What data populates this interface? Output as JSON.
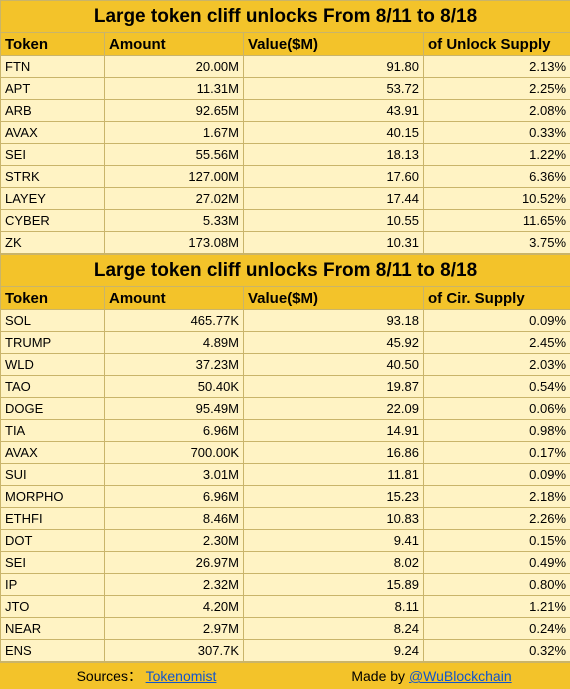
{
  "table1": {
    "title": "Large token cliff unlocks From  8/11 to 8/18",
    "headers": [
      "Token",
      "Amount",
      "Value($M)",
      "of Unlock Supply"
    ],
    "rows": [
      [
        "FTN",
        "20.00M",
        "91.80",
        "2.13%"
      ],
      [
        "APT",
        "11.31M",
        "53.72",
        "2.25%"
      ],
      [
        "ARB",
        "92.65M",
        "43.91",
        "2.08%"
      ],
      [
        "AVAX",
        "1.67M",
        "40.15",
        "0.33%"
      ],
      [
        "SEI",
        "55.56M",
        "18.13",
        "1.22%"
      ],
      [
        "STRK",
        "127.00M",
        "17.60",
        "6.36%"
      ],
      [
        "LAYEY",
        "27.02M",
        "17.44",
        "10.52%"
      ],
      [
        "CYBER",
        "5.33M",
        "10.55",
        "11.65%"
      ],
      [
        "ZK",
        "173.08M",
        "10.31",
        "3.75%"
      ]
    ]
  },
  "table2": {
    "title": "Large token cliff unlocks From  8/11 to 8/18",
    "headers": [
      "Token",
      "Amount",
      "Value($M)",
      "of Cir. Supply"
    ],
    "rows": [
      [
        "SOL",
        "465.77K",
        "93.18",
        "0.09%"
      ],
      [
        "TRUMP",
        "4.89M",
        "45.92",
        "2.45%"
      ],
      [
        "WLD",
        "37.23M",
        "40.50",
        "2.03%"
      ],
      [
        "TAO",
        "50.40K",
        "19.87",
        "0.54%"
      ],
      [
        "DOGE",
        "95.49M",
        "22.09",
        "0.06%"
      ],
      [
        "TIA",
        "6.96M",
        "14.91",
        "0.98%"
      ],
      [
        "AVAX",
        "700.00K",
        "16.86",
        "0.17%"
      ],
      [
        "SUI",
        "3.01M",
        "11.81",
        "0.09%"
      ],
      [
        "MORPHO",
        "6.96M",
        "15.23",
        "2.18%"
      ],
      [
        "ETHFI",
        "8.46M",
        "10.83",
        "2.26%"
      ],
      [
        "DOT",
        "2.30M",
        "9.41",
        "0.15%"
      ],
      [
        "SEI",
        "26.97M",
        "8.02",
        "0.49%"
      ],
      [
        "IP",
        "2.32M",
        "15.89",
        "0.80%"
      ],
      [
        "JTO",
        "4.20M",
        "8.11",
        "1.21%"
      ],
      [
        "NEAR",
        "2.97M",
        "8.24",
        "0.24%"
      ],
      [
        "ENS",
        "307.7K",
        "9.24",
        "0.32%"
      ]
    ]
  },
  "footer": {
    "sources_label": "Sources：",
    "sources_link": "Tokenomist",
    "made_by_label": "Made by ",
    "made_by_link": "@WuBlockchain"
  },
  "colors": {
    "header_bg": "#f3c32a",
    "row_bg": "#fff3c4",
    "link": "#1155cc"
  }
}
